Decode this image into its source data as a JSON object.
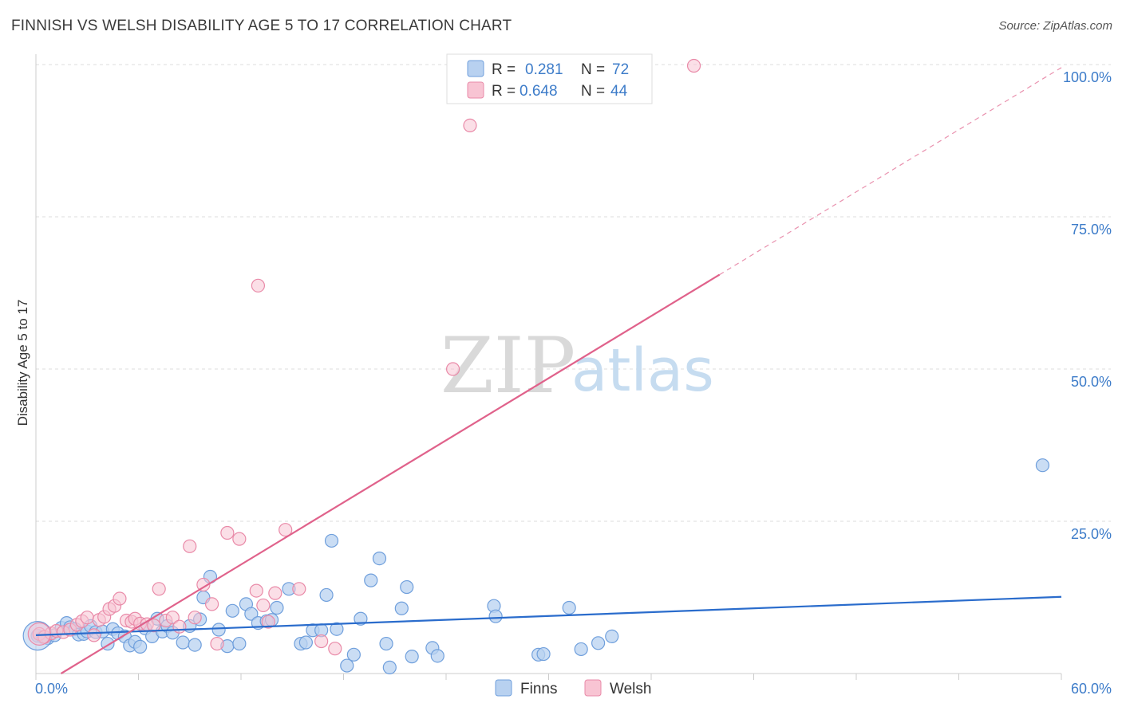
{
  "title": "FINNISH VS WELSH DISABILITY AGE 5 TO 17 CORRELATION CHART",
  "source": "Source: ZipAtlas.com",
  "watermark": {
    "zip": "ZIP",
    "atlas": "atlas"
  },
  "legend": {
    "r_label": "R =",
    "n_label": "N =",
    "finns": {
      "r": "0.281",
      "n": "72"
    },
    "welsh": {
      "r": "0.648",
      "n": "44"
    }
  },
  "colors": {
    "finns_fill": "#b8d1f0",
    "finns_stroke": "#6f9fdc",
    "finns_line": "#2a6ccc",
    "welsh_fill": "#f8c4d3",
    "welsh_stroke": "#e98aa8",
    "welsh_line": "#e0628b",
    "tick": "#3d7cc9"
  },
  "chart_data": {
    "type": "scatter",
    "title": "FINNISH VS WELSH DISABILITY AGE 5 TO 17 CORRELATION CHART",
    "xlabel": "",
    "ylabel": "Disability Age 5 to 17",
    "xlim": [
      0,
      60
    ],
    "ylim": [
      0,
      102
    ],
    "x_tick_labels": [
      {
        "value": 0,
        "label": "0.0%"
      },
      {
        "value": 60,
        "label": "60.0%"
      }
    ],
    "y_tick_labels": [
      {
        "value": 25,
        "label": "25.0%"
      },
      {
        "value": 50,
        "label": "50.0%"
      },
      {
        "value": 75,
        "label": "75.0%"
      },
      {
        "value": 100,
        "label": "100.0%"
      }
    ],
    "legend_entries": [
      "Finns",
      "Welsh"
    ],
    "series": [
      {
        "name": "Finns",
        "r": 0.281,
        "n": 72,
        "trend": {
          "x0": 0,
          "y0": 6.3,
          "x1": 60,
          "y1": 12.6
        },
        "points": [
          [
            0.1,
            6.2
          ],
          [
            0.4,
            6.0
          ],
          [
            0.7,
            5.8
          ],
          [
            1.1,
            6.3
          ],
          [
            1.5,
            7.5
          ],
          [
            1.8,
            8.3
          ],
          [
            2.0,
            7.6
          ],
          [
            2.3,
            7.3
          ],
          [
            2.5,
            6.4
          ],
          [
            2.8,
            6.5
          ],
          [
            3.0,
            6.9
          ],
          [
            3.2,
            7.8
          ],
          [
            3.5,
            6.8
          ],
          [
            3.9,
            6.9
          ],
          [
            4.2,
            4.9
          ],
          [
            4.5,
            7.3
          ],
          [
            4.8,
            6.6
          ],
          [
            5.2,
            6.1
          ],
          [
            5.5,
            4.6
          ],
          [
            5.8,
            5.2
          ],
          [
            6.1,
            4.4
          ],
          [
            6.4,
            7.4
          ],
          [
            6.8,
            6.1
          ],
          [
            7.1,
            9.0
          ],
          [
            7.4,
            6.9
          ],
          [
            7.7,
            7.8
          ],
          [
            8.0,
            6.7
          ],
          [
            8.6,
            5.1
          ],
          [
            9.0,
            7.8
          ],
          [
            9.3,
            4.7
          ],
          [
            9.6,
            8.9
          ],
          [
            9.8,
            12.5
          ],
          [
            10.2,
            15.9
          ],
          [
            10.7,
            7.2
          ],
          [
            11.2,
            4.5
          ],
          [
            11.5,
            10.3
          ],
          [
            11.9,
            4.9
          ],
          [
            12.3,
            11.4
          ],
          [
            12.6,
            9.8
          ],
          [
            13.0,
            8.3
          ],
          [
            13.5,
            8.6
          ],
          [
            13.8,
            8.8
          ],
          [
            14.1,
            10.8
          ],
          [
            14.8,
            13.9
          ],
          [
            15.5,
            4.9
          ],
          [
            15.8,
            5.1
          ],
          [
            16.2,
            7.1
          ],
          [
            16.7,
            7.1
          ],
          [
            17.0,
            12.9
          ],
          [
            17.3,
            21.8
          ],
          [
            17.6,
            7.3
          ],
          [
            18.2,
            1.3
          ],
          [
            18.6,
            3.1
          ],
          [
            19.0,
            9.0
          ],
          [
            19.6,
            15.3
          ],
          [
            20.1,
            18.9
          ],
          [
            20.5,
            4.9
          ],
          [
            20.7,
            1.0
          ],
          [
            21.4,
            10.7
          ],
          [
            21.7,
            14.2
          ],
          [
            22.0,
            2.8
          ],
          [
            23.2,
            4.2
          ],
          [
            23.5,
            2.9
          ],
          [
            26.8,
            11.1
          ],
          [
            26.9,
            9.4
          ],
          [
            29.4,
            3.1
          ],
          [
            29.7,
            3.2
          ],
          [
            31.2,
            10.8
          ],
          [
            31.9,
            4.0
          ],
          [
            32.9,
            5.0
          ],
          [
            33.7,
            6.1
          ],
          [
            58.9,
            34.2
          ]
        ]
      },
      {
        "name": "Welsh",
        "r": 0.648,
        "n": 44,
        "trend": {
          "x0": 0,
          "y0": -2.5,
          "x1": 40,
          "y1": 65.5,
          "dashed_to": {
            "x": 60,
            "y": 99.5
          }
        },
        "points": [
          [
            0.2,
            6.5
          ],
          [
            0.5,
            6.0
          ],
          [
            0.9,
            6.6
          ],
          [
            1.2,
            7.0
          ],
          [
            1.6,
            6.8
          ],
          [
            2.0,
            7.2
          ],
          [
            2.4,
            8.0
          ],
          [
            2.7,
            8.6
          ],
          [
            3.0,
            9.2
          ],
          [
            3.4,
            6.3
          ],
          [
            3.7,
            8.8
          ],
          [
            4.0,
            9.3
          ],
          [
            4.3,
            10.6
          ],
          [
            4.6,
            11.1
          ],
          [
            4.9,
            12.3
          ],
          [
            5.3,
            8.7
          ],
          [
            5.6,
            8.5
          ],
          [
            5.8,
            9.0
          ],
          [
            6.1,
            8.2
          ],
          [
            6.5,
            8.1
          ],
          [
            6.9,
            7.9
          ],
          [
            7.2,
            13.9
          ],
          [
            7.6,
            8.7
          ],
          [
            8.0,
            9.2
          ],
          [
            8.4,
            7.7
          ],
          [
            9.0,
            20.9
          ],
          [
            9.3,
            9.2
          ],
          [
            9.8,
            14.6
          ],
          [
            10.3,
            11.4
          ],
          [
            10.6,
            4.9
          ],
          [
            11.2,
            23.1
          ],
          [
            11.9,
            22.1
          ],
          [
            12.9,
            13.6
          ],
          [
            13.3,
            11.2
          ],
          [
            13.6,
            8.5
          ],
          [
            14.0,
            13.2
          ],
          [
            14.6,
            23.6
          ],
          [
            15.4,
            13.9
          ],
          [
            16.7,
            5.3
          ],
          [
            17.5,
            4.1
          ],
          [
            13.0,
            63.7
          ],
          [
            24.4,
            50.0
          ],
          [
            25.4,
            90.0
          ],
          [
            38.5,
            99.8
          ]
        ]
      }
    ]
  }
}
